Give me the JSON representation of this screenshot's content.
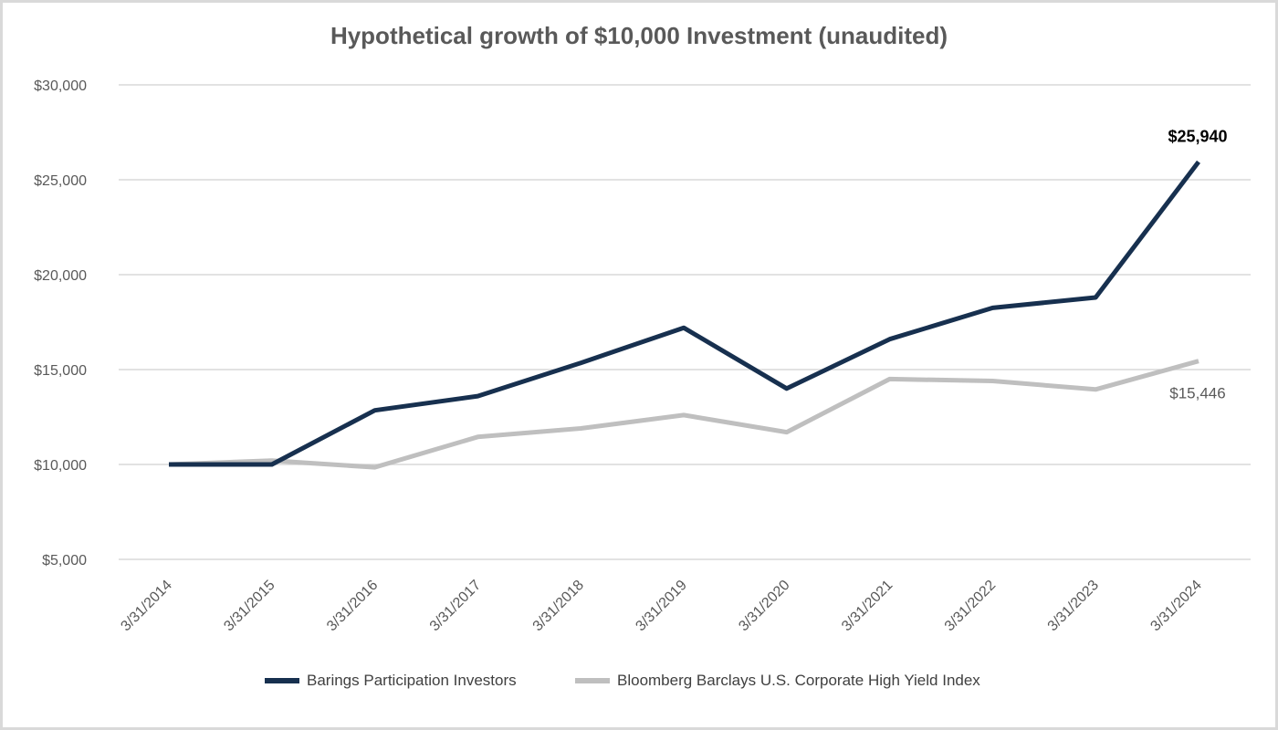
{
  "chart_data": {
    "type": "line",
    "title": "Hypothetical growth of $10,000 Investment (unaudited)",
    "categories": [
      "3/31/2014",
      "3/31/2015",
      "3/31/2016",
      "3/31/2017",
      "3/31/2018",
      "3/31/2019",
      "3/31/2020",
      "3/31/2021",
      "3/31/2022",
      "3/31/2023",
      "3/31/2024"
    ],
    "series": [
      {
        "name": "Barings Participation Investors",
        "color": "#17304f",
        "values": [
          10000,
          10000,
          12850,
          13600,
          15350,
          17200,
          14000,
          16600,
          18250,
          18800,
          25940
        ],
        "end_label": "$25,940"
      },
      {
        "name": "Bloomberg Barclays U.S. Corporate High Yield Index",
        "color": "#bfbfbf",
        "values": [
          10000,
          10200,
          9850,
          11450,
          11900,
          12600,
          11700,
          14500,
          14400,
          13950,
          15446
        ],
        "end_label": "$15,446"
      }
    ],
    "ylim": [
      5000,
      30000
    ],
    "yticks": [
      5000,
      10000,
      15000,
      20000,
      25000,
      30000
    ],
    "ytick_labels": [
      "$5,000",
      "$10,000",
      "$15,000",
      "$20,000",
      "$25,000",
      "$30,000"
    ],
    "grid": true,
    "legend_position": "bottom",
    "xlabel": "",
    "ylabel": ""
  }
}
